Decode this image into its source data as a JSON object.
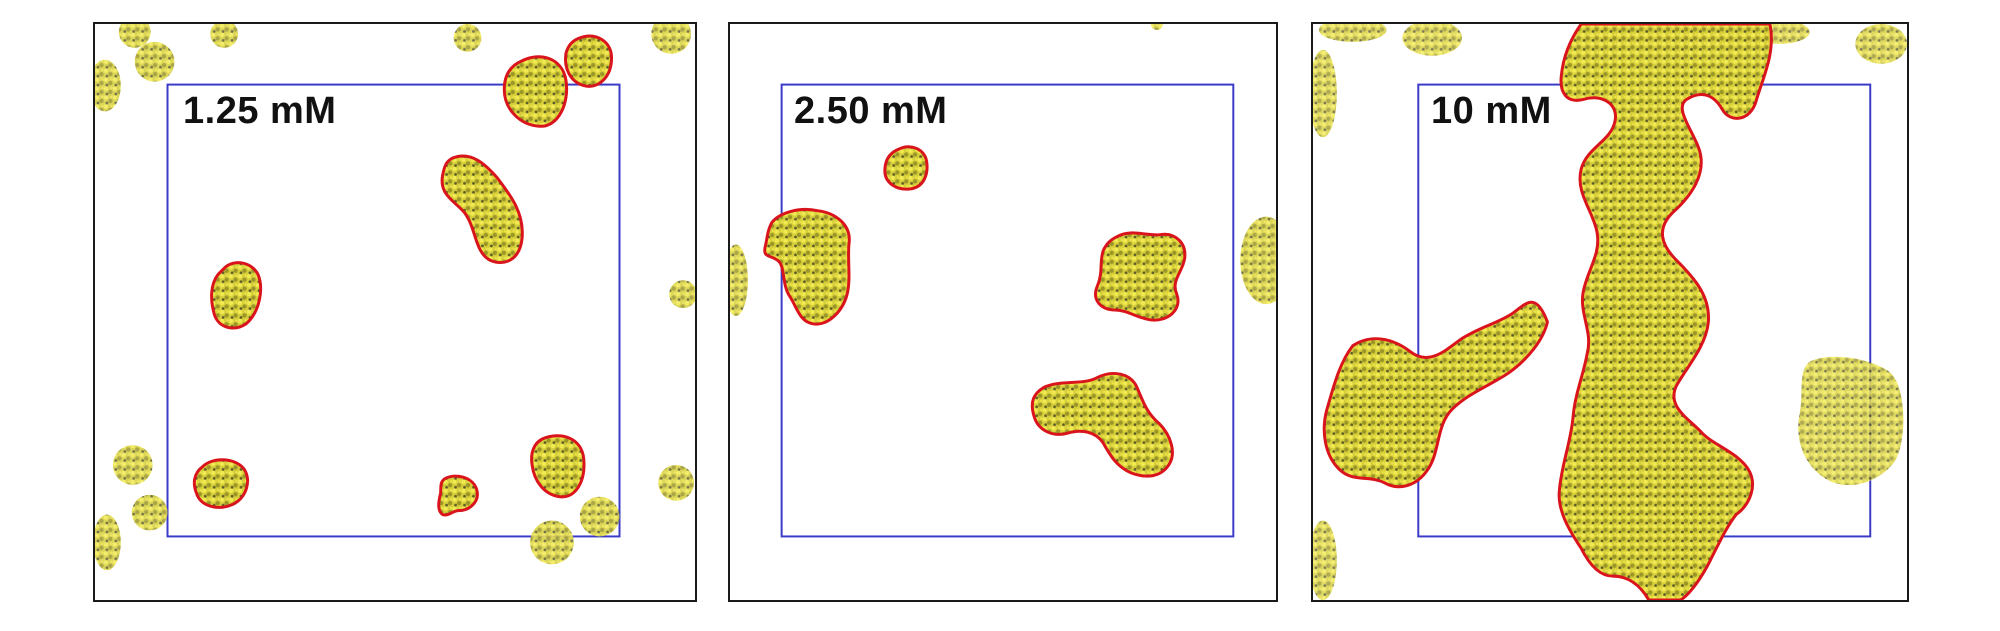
{
  "figure": {
    "panels": [
      {
        "id": "panel-1",
        "label": "1.25 mM"
      },
      {
        "id": "panel-2",
        "label": "2.50 mM"
      },
      {
        "id": "panel-3",
        "label": "10 mM"
      }
    ]
  },
  "colors": {
    "frame": "#1a1a1a",
    "simulation_box": "#3b3bc8",
    "cluster_outline": "#d9141c",
    "cluster_fill": "#c8c232",
    "cluster_shade": "#6d6a20"
  }
}
